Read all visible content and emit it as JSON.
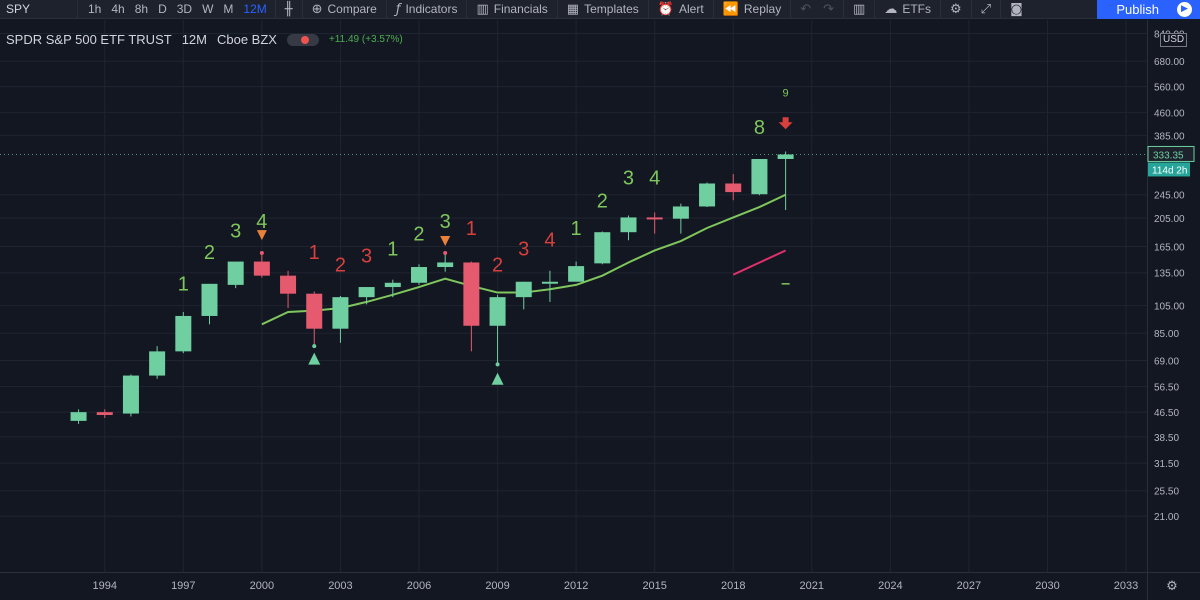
{
  "toolbar": {
    "symbol": "SPY",
    "intervals": [
      "1h",
      "4h",
      "8h",
      "D",
      "3D",
      "W",
      "M",
      "12M"
    ],
    "active_interval": "12M",
    "compare_label": "Compare",
    "indicators_label": "Indicators",
    "financials_label": "Financials",
    "templates_label": "Templates",
    "alert_label": "Alert",
    "replay_label": "Replay",
    "etfs_label": "ETFs",
    "publish_label": "Publish"
  },
  "legend": {
    "title": "SPDR S&P 500 ETF TRUST",
    "interval": "12M",
    "exchange": "Cboe BZX",
    "change": "+11.49 (+3.57%)"
  },
  "currency": "USD",
  "colors": {
    "up": "#6fcfa0",
    "down": "#e55a6e",
    "ma": "#7fc75c",
    "count_up": "#7fc75c",
    "count_down": "#d7403d",
    "red_line": "#e0306b",
    "background": "#131722"
  },
  "chart_data": {
    "type": "candlestick",
    "symbol": "SPY",
    "y_scale": "log",
    "ylim": [
      17.5,
      850
    ],
    "xlim": [
      1990,
      2033.8
    ],
    "y_ticks": [
      "840.00",
      "680.00",
      "560.00",
      "460.00",
      "385.00",
      "333.35",
      "245.00",
      "205.00",
      "165.00",
      "135.00",
      "105.00",
      "85.00",
      "69.00",
      "56.50",
      "46.50",
      "38.50",
      "31.50",
      "25.50",
      "21.00"
    ],
    "x_ticks": [
      "1994",
      "1997",
      "2000",
      "2003",
      "2006",
      "2009",
      "2012",
      "2015",
      "2018",
      "2021",
      "2024",
      "2027",
      "2030",
      "2033"
    ],
    "last_price": "333.35",
    "countdown": "114d 2h",
    "candles": [
      {
        "year": 1993,
        "open": 43.5,
        "high": 47.5,
        "low": 42.5,
        "close": 46.5
      },
      {
        "year": 1994,
        "open": 46.5,
        "high": 47.5,
        "low": 44.5,
        "close": 45.5
      },
      {
        "year": 1995,
        "open": 46,
        "high": 62,
        "low": 45,
        "close": 61.5
      },
      {
        "year": 1996,
        "open": 61.5,
        "high": 77,
        "low": 60,
        "close": 74
      },
      {
        "year": 1997,
        "open": 74,
        "high": 100,
        "low": 73,
        "close": 97
      },
      {
        "year": 1998,
        "open": 97,
        "high": 124,
        "low": 91,
        "close": 124
      },
      {
        "year": 1999,
        "open": 123,
        "high": 146,
        "low": 120,
        "close": 147
      },
      {
        "year": 2000,
        "open": 147,
        "high": 157,
        "low": 130,
        "close": 132
      },
      {
        "year": 2001,
        "open": 132,
        "high": 137,
        "low": 103,
        "close": 115
      },
      {
        "year": 2002,
        "open": 115,
        "high": 117,
        "low": 77,
        "close": 88
      },
      {
        "year": 2003,
        "open": 88,
        "high": 113,
        "low": 79,
        "close": 112
      },
      {
        "year": 2004,
        "open": 112,
        "high": 121,
        "low": 106,
        "close": 121
      },
      {
        "year": 2005,
        "open": 121,
        "high": 128,
        "low": 112,
        "close": 125
      },
      {
        "year": 2006,
        "open": 125,
        "high": 144,
        "low": 123,
        "close": 141
      },
      {
        "year": 2007,
        "open": 141,
        "high": 157,
        "low": 136,
        "close": 146
      },
      {
        "year": 2008,
        "open": 146,
        "high": 147,
        "low": 74,
        "close": 90
      },
      {
        "year": 2009,
        "open": 90,
        "high": 114,
        "low": 67,
        "close": 112
      },
      {
        "year": 2010,
        "open": 112,
        "high": 126,
        "low": 102,
        "close": 126
      },
      {
        "year": 2011,
        "open": 126,
        "high": 137,
        "low": 108,
        "close": 126
      },
      {
        "year": 2012,
        "open": 126,
        "high": 147,
        "low": 128,
        "close": 142
      },
      {
        "year": 2013,
        "open": 145,
        "high": 185,
        "low": 144,
        "close": 184
      },
      {
        "year": 2014,
        "open": 184,
        "high": 209,
        "low": 173,
        "close": 206
      },
      {
        "year": 2015,
        "open": 206,
        "high": 214,
        "low": 182,
        "close": 204
      },
      {
        "year": 2016,
        "open": 204,
        "high": 229,
        "low": 182,
        "close": 224
      },
      {
        "year": 2017,
        "open": 224,
        "high": 269,
        "low": 223,
        "close": 267
      },
      {
        "year": 2018,
        "open": 267,
        "high": 287,
        "low": 235,
        "close": 250
      },
      {
        "year": 2019,
        "open": 246,
        "high": 322,
        "low": 244,
        "close": 322
      },
      {
        "year": 2020,
        "open": 322,
        "high": 341,
        "low": 218,
        "close": 333.35
      }
    ],
    "moving_average": [
      {
        "year": 2000,
        "value": 91
      },
      {
        "year": 2001,
        "value": 100
      },
      {
        "year": 2002,
        "value": 101
      },
      {
        "year": 2003,
        "value": 103
      },
      {
        "year": 2004,
        "value": 108
      },
      {
        "year": 2005,
        "value": 114
      },
      {
        "year": 2006,
        "value": 121
      },
      {
        "year": 2007,
        "value": 129
      },
      {
        "year": 2008,
        "value": 122
      },
      {
        "year": 2009,
        "value": 116
      },
      {
        "year": 2010,
        "value": 116
      },
      {
        "year": 2011,
        "value": 119
      },
      {
        "year": 2012,
        "value": 123
      },
      {
        "year": 2013,
        "value": 132
      },
      {
        "year": 2014,
        "value": 146
      },
      {
        "year": 2015,
        "value": 160
      },
      {
        "year": 2016,
        "value": 172
      },
      {
        "year": 2017,
        "value": 190
      },
      {
        "year": 2018,
        "value": 206
      },
      {
        "year": 2019,
        "value": 223
      },
      {
        "year": 2020,
        "value": 245
      }
    ],
    "red_line": [
      {
        "year": 2018,
        "value": 133
      },
      {
        "year": 2020,
        "value": 160
      }
    ],
    "green_tick": {
      "year": 2020,
      "value": 124
    },
    "counts": [
      {
        "year": 1997,
        "label": "1",
        "side": "up",
        "price": 118
      },
      {
        "year": 1998,
        "label": "2",
        "side": "up",
        "price": 150
      },
      {
        "year": 1999,
        "label": "3",
        "side": "up",
        "price": 177
      },
      {
        "year": 2000,
        "label": "4",
        "side": "up",
        "price": 190
      },
      {
        "year": 2002,
        "label": "1",
        "side": "down",
        "price": 150
      },
      {
        "year": 2003,
        "label": "2",
        "side": "down",
        "price": 136
      },
      {
        "year": 2004,
        "label": "3",
        "side": "down",
        "price": 146
      },
      {
        "year": 2005,
        "label": "1",
        "side": "up",
        "price": 154
      },
      {
        "year": 2006,
        "label": "2",
        "side": "up",
        "price": 173
      },
      {
        "year": 2007,
        "label": "3",
        "side": "up",
        "price": 190
      },
      {
        "year": 2008,
        "label": "1",
        "side": "down",
        "price": 180
      },
      {
        "year": 2009,
        "label": "2",
        "side": "down",
        "price": 136
      },
      {
        "year": 2010,
        "label": "3",
        "side": "down",
        "price": 154
      },
      {
        "year": 2011,
        "label": "4",
        "side": "down",
        "price": 165
      },
      {
        "year": 2012,
        "label": "1",
        "side": "up",
        "price": 180
      },
      {
        "year": 2013,
        "label": "2",
        "side": "up",
        "price": 222
      },
      {
        "year": 2014,
        "label": "3",
        "side": "up",
        "price": 265
      },
      {
        "year": 2015,
        "label": "4",
        "side": "up",
        "price": 265
      },
      {
        "year": 2019,
        "label": "8",
        "side": "up",
        "price": 390
      },
      {
        "year": 2020,
        "label": "9",
        "side": "up",
        "price": 520
      }
    ],
    "markers": [
      {
        "year": 2000,
        "shape": "triangle-down",
        "color": "#e8823a",
        "price": 180
      },
      {
        "year": 2000,
        "shape": "dot",
        "color": "#e55a6e",
        "price": 157
      },
      {
        "year": 2002,
        "shape": "dot",
        "color": "#6fcfa0",
        "price": 77
      },
      {
        "year": 2002,
        "shape": "triangle-up",
        "color": "#6fcfa0",
        "price": 70
      },
      {
        "year": 2007,
        "shape": "triangle-down",
        "color": "#e8823a",
        "price": 172
      },
      {
        "year": 2007,
        "shape": "dot",
        "color": "#e55a6e",
        "price": 157
      },
      {
        "year": 2009,
        "shape": "dot",
        "color": "#6fcfa0",
        "price": 67
      },
      {
        "year": 2009,
        "shape": "triangle-up",
        "color": "#6fcfa0",
        "price": 60
      },
      {
        "year": 2020,
        "shape": "arrow-down",
        "color": "#d7403d",
        "price": 420
      }
    ]
  }
}
